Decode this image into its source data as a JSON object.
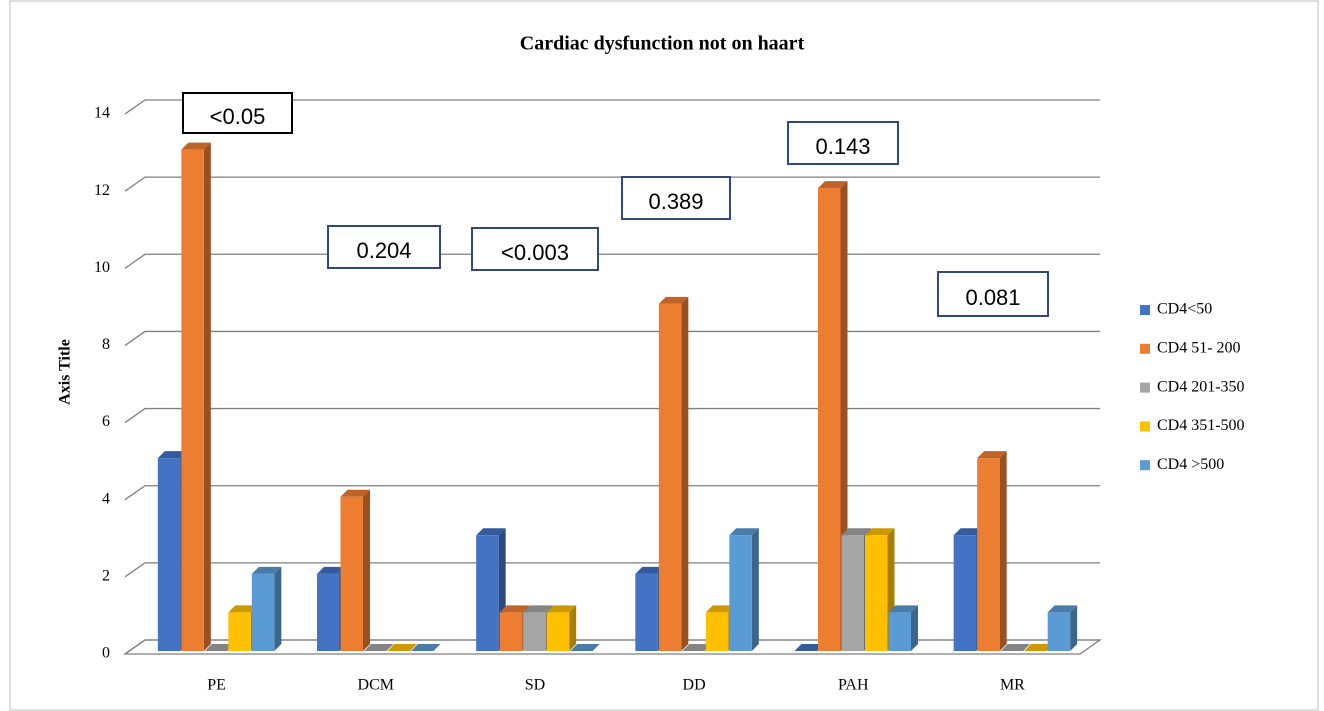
{
  "chart_data": {
    "type": "bar3d",
    "title": "Cardiac dysfunction not on haart",
    "y_axis_label": "Axis Title",
    "categories": [
      "PE",
      "DCM",
      "SD",
      "DD",
      "PAH",
      "MR"
    ],
    "series": [
      {
        "name": "CD4<50",
        "color": "#4472c4",
        "values": [
          5,
          2,
          3,
          2,
          0,
          3
        ]
      },
      {
        "name": "CD4 51- 200",
        "color": "#ed7d31",
        "values": [
          13,
          4,
          1,
          9,
          12,
          5
        ]
      },
      {
        "name": "CD4 201-350",
        "color": "#a5a5a5",
        "values": [
          0,
          0,
          1,
          0,
          3,
          0
        ]
      },
      {
        "name": "CD4 351-500",
        "color": "#ffc000",
        "values": [
          1,
          0,
          1,
          1,
          3,
          0
        ]
      },
      {
        "name": "CD4 >500",
        "color": "#5b9bd5",
        "values": [
          2,
          0,
          0,
          3,
          1,
          1
        ]
      }
    ],
    "annotations": [
      "<0.05",
      "0.204",
      "<0.003",
      "0.389",
      "0.143",
      "0.081"
    ],
    "ylim": [
      0,
      14
    ],
    "yticks": [
      0,
      2,
      4,
      6,
      8,
      10,
      12,
      14
    ],
    "grid": true,
    "legend": "right"
  }
}
